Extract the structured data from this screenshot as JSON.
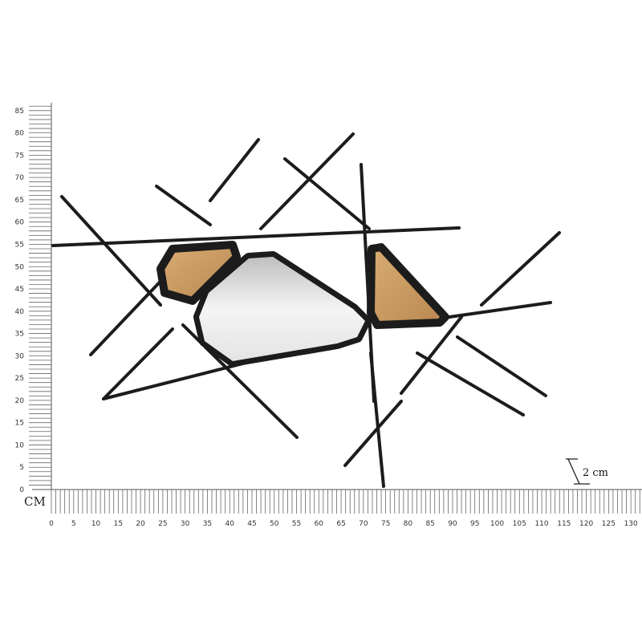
{
  "ruler": {
    "unit_label": "CM",
    "x_ticks": [
      "0",
      "5",
      "10",
      "15",
      "20",
      "25",
      "30",
      "35",
      "40",
      "45",
      "50",
      "55",
      "60",
      "65",
      "70",
      "75",
      "80",
      "85",
      "90",
      "95",
      "100",
      "105",
      "110",
      "115",
      "120",
      "125",
      "130"
    ],
    "y_ticks": [
      "0",
      "5",
      "10",
      "15",
      "20",
      "25",
      "30",
      "35",
      "40",
      "45",
      "50",
      "55",
      "60",
      "65",
      "70",
      "75",
      "80",
      "85"
    ]
  },
  "depth_annotation": {
    "label": "2 cm"
  },
  "product": {
    "frame_color": "#1c1c1c",
    "wood_color": "#c89a62",
    "mirror_color": "#d9d9d9"
  }
}
